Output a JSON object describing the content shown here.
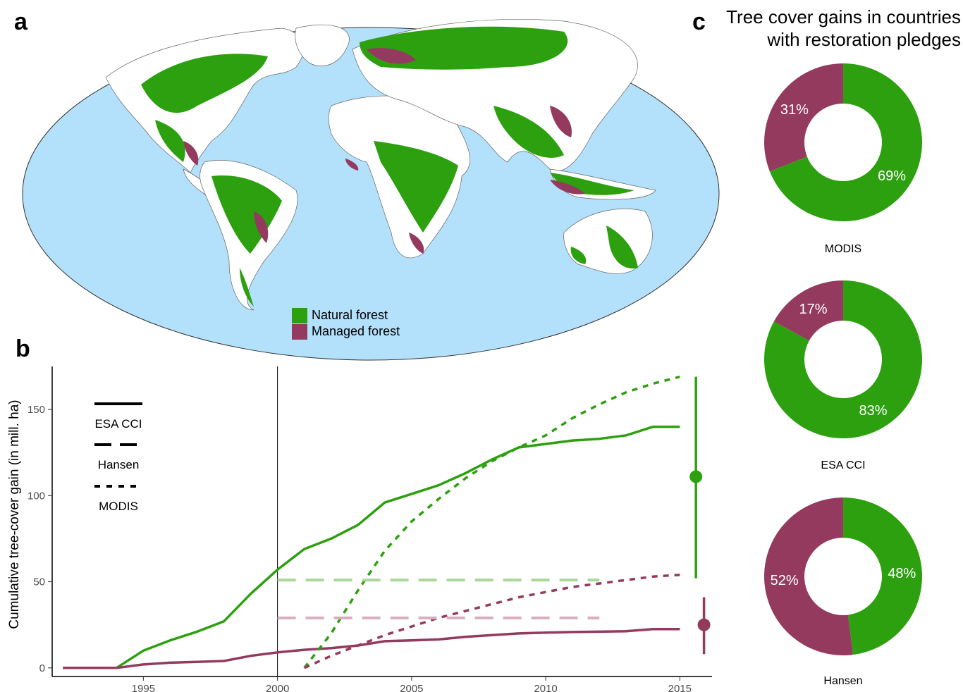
{
  "panels": {
    "a": "a",
    "b": "b",
    "c": "c"
  },
  "colors": {
    "natural": "#2ca00f",
    "managed": "#943a5f",
    "ocean": "#b3e0fa",
    "natural_light": "#a9d798",
    "managed_light": "#d8aec0"
  },
  "map": {
    "legend": [
      {
        "label": "Natural forest",
        "color": "#2ca00f"
      },
      {
        "label": "Managed forest",
        "color": "#943a5f"
      }
    ]
  },
  "chart_data": [
    {
      "type": "line",
      "ylabel": "Cumulative tree-cover gain (in mill. ha)",
      "xlabel": "",
      "xlim": [
        1991.6,
        2016.2
      ],
      "ylim": [
        -5,
        175
      ],
      "xticks": [
        1995,
        2000,
        2005,
        2010,
        2015
      ],
      "yticks": [
        0,
        50,
        100,
        150
      ],
      "reference_line_x": 2000,
      "legend_placement": "top-left",
      "legend": [
        {
          "label": "ESA CCI",
          "style": "solid"
        },
        {
          "label": "Hansen",
          "style": "dashed"
        },
        {
          "label": "MODIS",
          "style": "dotted"
        }
      ],
      "series": [
        {
          "dataset": "ESA CCI",
          "forest": "natural",
          "style": "solid",
          "x": [
            1992,
            1993,
            1994,
            1995,
            1996,
            1997,
            1998,
            1999,
            2000,
            2001,
            2002,
            2003,
            2004,
            2005,
            2006,
            2007,
            2008,
            2009,
            2010,
            2011,
            2012,
            2013,
            2014,
            2015
          ],
          "y": [
            0,
            0,
            0,
            10,
            16,
            21,
            27,
            43,
            57,
            69,
            75,
            83,
            96,
            101,
            106,
            113,
            121,
            128,
            130,
            132,
            133,
            135,
            140,
            140
          ]
        },
        {
          "dataset": "ESA CCI",
          "forest": "managed",
          "style": "solid",
          "x": [
            1992,
            1993,
            1994,
            1995,
            1996,
            1997,
            1998,
            1999,
            2000,
            2001,
            2002,
            2003,
            2004,
            2005,
            2006,
            2007,
            2008,
            2009,
            2010,
            2011,
            2012,
            2013,
            2014,
            2015
          ],
          "y": [
            0,
            0,
            0,
            2,
            3,
            3.5,
            4,
            7,
            9,
            10.5,
            11.5,
            13,
            15.5,
            16,
            16.5,
            18,
            19,
            20,
            20.5,
            20.8,
            21,
            21.3,
            22.5,
            22.5
          ]
        },
        {
          "dataset": "MODIS",
          "forest": "natural",
          "style": "dotted",
          "x": [
            2001,
            2002,
            2003,
            2004,
            2005,
            2006,
            2007,
            2008,
            2009,
            2010,
            2011,
            2012,
            2013,
            2014,
            2015
          ],
          "y": [
            0,
            20,
            45,
            68,
            85,
            98,
            110,
            120,
            128,
            135,
            145,
            153,
            160,
            165,
            169
          ]
        },
        {
          "dataset": "MODIS",
          "forest": "managed",
          "style": "dotted",
          "x": [
            2001,
            2002,
            2003,
            2004,
            2005,
            2006,
            2007,
            2008,
            2009,
            2010,
            2011,
            2012,
            2013,
            2014,
            2015
          ],
          "y": [
            0,
            7,
            13,
            19,
            24,
            29,
            33,
            37,
            41,
            44,
            47,
            49,
            51,
            53,
            54
          ]
        },
        {
          "dataset": "Hansen",
          "forest": "natural",
          "style": "dashed",
          "x": [
            2000,
            2012
          ],
          "y": [
            51,
            51
          ]
        },
        {
          "dataset": "Hansen",
          "forest": "managed",
          "style": "dashed",
          "x": [
            2000,
            2012
          ],
          "y": [
            29,
            29
          ]
        }
      ],
      "error_bars": [
        {
          "forest": "natural",
          "x": 2015.6,
          "y": 111,
          "low": 52,
          "high": 169
        },
        {
          "forest": "managed",
          "x": 2015.9,
          "y": 25,
          "low": 8,
          "high": 41
        }
      ]
    },
    {
      "type": "pie",
      "title": "Tree cover gains in countries with restoration pledges",
      "donuts": [
        {
          "label": "MODIS",
          "slices": [
            {
              "forest": "natural",
              "value": 69,
              "text": "69%"
            },
            {
              "forest": "managed",
              "value": 31,
              "text": "31%"
            }
          ]
        },
        {
          "label": "ESA CCI",
          "slices": [
            {
              "forest": "natural",
              "value": 83,
              "text": "83%"
            },
            {
              "forest": "managed",
              "value": 17,
              "text": "17%"
            }
          ]
        },
        {
          "label": "Hansen",
          "slices": [
            {
              "forest": "natural",
              "value": 48,
              "text": "48%"
            },
            {
              "forest": "managed",
              "value": 52,
              "text": "52%"
            }
          ]
        }
      ]
    }
  ]
}
